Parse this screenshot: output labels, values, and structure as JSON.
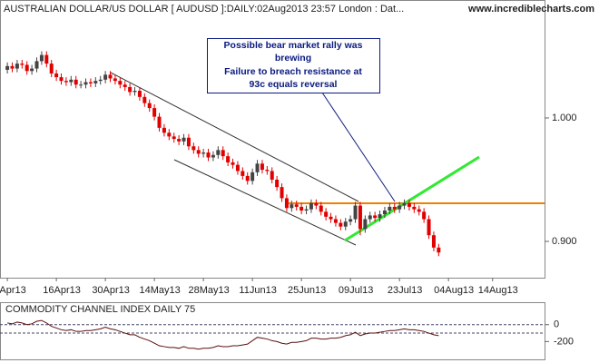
{
  "chart_data": [
    {
      "type": "candlestick",
      "title": "AUSTRALIAN DOLLAR/US DOLLAR [ AUDUSD ]:DAILY:02Aug2013 23:57 London : Dat...",
      "source": "www.incrediblecharts.com",
      "annotation": [
        "Possible bear market rally was",
        "brewing",
        "Failure to breach resistance at",
        "93c equals reversal"
      ],
      "up_color": "#444444",
      "down_color": "#e00000",
      "x": [
        0,
        1,
        2,
        3,
        4,
        5,
        6,
        7,
        8,
        9,
        10,
        11,
        12,
        13,
        14,
        15,
        16,
        17,
        18,
        19,
        20,
        21,
        22,
        23,
        24,
        25,
        26,
        27,
        28,
        29,
        30,
        31,
        32,
        33,
        34,
        35,
        36,
        37,
        38,
        39,
        40,
        41,
        42,
        43,
        44,
        45,
        46,
        47,
        48,
        49,
        50,
        51,
        52,
        53,
        54,
        55,
        56,
        57,
        58,
        59,
        60,
        61,
        62,
        63,
        64,
        65,
        66,
        67,
        68,
        69,
        70,
        71,
        72,
        73,
        74,
        75,
        76,
        77,
        78,
        79,
        80,
        81,
        82,
        83,
        84,
        85,
        86,
        87,
        88
      ],
      "open": [
        1.039,
        1.042,
        1.04,
        1.044,
        1.043,
        1.038,
        1.04,
        1.046,
        1.051,
        1.044,
        1.036,
        1.033,
        1.03,
        1.029,
        1.031,
        1.027,
        1.027,
        1.029,
        1.028,
        1.03,
        1.031,
        1.035,
        1.032,
        1.03,
        1.027,
        1.025,
        1.021,
        1.022,
        1.017,
        1.012,
        1.008,
        1.001,
        0.992,
        0.988,
        0.985,
        0.983,
        0.981,
        0.984,
        0.977,
        0.974,
        0.971,
        0.972,
        0.968,
        0.97,
        0.974,
        0.969,
        0.964,
        0.962,
        0.957,
        0.953,
        0.949,
        0.956,
        0.963,
        0.958,
        0.957,
        0.95,
        0.944,
        0.935,
        0.927,
        0.93,
        0.928,
        0.925,
        0.926,
        0.931,
        0.929,
        0.924,
        0.92,
        0.918,
        0.915,
        0.912,
        0.916,
        0.918,
        0.929,
        0.91,
        0.918,
        0.921,
        0.919,
        0.922,
        0.925,
        0.928,
        0.926,
        0.929,
        0.931,
        0.928,
        0.926,
        0.924,
        0.918,
        0.905,
        0.895
      ],
      "high": [
        1.045,
        1.045,
        1.047,
        1.047,
        1.046,
        1.043,
        1.049,
        1.054,
        1.054,
        1.047,
        1.039,
        1.036,
        1.033,
        1.034,
        1.034,
        1.03,
        1.032,
        1.032,
        1.033,
        1.034,
        1.038,
        1.038,
        1.035,
        1.033,
        1.03,
        1.028,
        1.025,
        1.025,
        1.02,
        1.015,
        1.011,
        1.004,
        0.995,
        0.991,
        0.988,
        0.986,
        0.987,
        0.987,
        0.98,
        0.977,
        0.975,
        0.975,
        0.973,
        0.977,
        0.977,
        0.972,
        0.967,
        0.965,
        0.96,
        0.956,
        0.959,
        0.966,
        0.966,
        0.961,
        0.96,
        0.953,
        0.947,
        0.938,
        0.933,
        0.933,
        0.931,
        0.929,
        0.934,
        0.934,
        0.932,
        0.927,
        0.923,
        0.921,
        0.918,
        0.919,
        0.921,
        0.932,
        0.932,
        0.921,
        0.924,
        0.924,
        0.925,
        0.928,
        0.931,
        0.931,
        0.932,
        0.934,
        0.934,
        0.931,
        0.929,
        0.927,
        0.921,
        0.908,
        0.898
      ],
      "low": [
        1.036,
        1.037,
        1.037,
        1.04,
        1.035,
        1.035,
        1.037,
        1.043,
        1.041,
        1.033,
        1.03,
        1.027,
        1.026,
        1.026,
        1.024,
        1.024,
        1.024,
        1.025,
        1.025,
        1.027,
        1.028,
        1.029,
        1.027,
        1.024,
        1.022,
        1.018,
        1.018,
        1.014,
        1.009,
        1.005,
        0.998,
        0.989,
        0.985,
        0.982,
        0.98,
        0.978,
        0.978,
        0.974,
        0.971,
        0.968,
        0.968,
        0.965,
        0.965,
        0.967,
        0.966,
        0.961,
        0.959,
        0.954,
        0.95,
        0.946,
        0.946,
        0.953,
        0.955,
        0.954,
        0.947,
        0.941,
        0.932,
        0.924,
        0.924,
        0.925,
        0.922,
        0.922,
        0.923,
        0.926,
        0.921,
        0.917,
        0.915,
        0.912,
        0.909,
        0.909,
        0.913,
        0.915,
        0.905,
        0.907,
        0.915,
        0.916,
        0.916,
        0.919,
        0.922,
        0.923,
        0.923,
        0.926,
        0.925,
        0.923,
        0.921,
        0.915,
        0.902,
        0.892,
        0.888
      ],
      "close": [
        1.042,
        1.04,
        1.044,
        1.043,
        1.038,
        1.04,
        1.046,
        1.051,
        1.044,
        1.036,
        1.033,
        1.03,
        1.029,
        1.031,
        1.027,
        1.027,
        1.029,
        1.028,
        1.03,
        1.031,
        1.035,
        1.032,
        1.03,
        1.027,
        1.025,
        1.021,
        1.022,
        1.017,
        1.012,
        1.008,
        1.001,
        0.992,
        0.988,
        0.985,
        0.983,
        0.981,
        0.984,
        0.977,
        0.974,
        0.971,
        0.972,
        0.968,
        0.97,
        0.974,
        0.969,
        0.964,
        0.962,
        0.957,
        0.953,
        0.949,
        0.956,
        0.963,
        0.958,
        0.957,
        0.95,
        0.944,
        0.935,
        0.927,
        0.93,
        0.928,
        0.925,
        0.926,
        0.931,
        0.929,
        0.924,
        0.92,
        0.918,
        0.915,
        0.912,
        0.916,
        0.918,
        0.929,
        0.91,
        0.918,
        0.921,
        0.919,
        0.922,
        0.925,
        0.928,
        0.926,
        0.929,
        0.931,
        0.928,
        0.926,
        0.924,
        0.918,
        0.905,
        0.895,
        0.891
      ],
      "xlim": [
        -1.5,
        109.6
      ],
      "ylim": [
        0.8706,
        1.0948
      ],
      "yticks": [
        {
          "value": 1.0,
          "label": "1.000"
        },
        {
          "value": 0.9,
          "label": "0.900"
        }
      ],
      "xticks": [
        {
          "value": 0,
          "label": "Apr13"
        },
        {
          "value": 10,
          "label": "16Apr13"
        },
        {
          "value": 20,
          "label": "30Apr13"
        },
        {
          "value": 30,
          "label": "14May13"
        },
        {
          "value": 40,
          "label": "28May13"
        },
        {
          "value": 50,
          "label": "11Jun13"
        },
        {
          "value": 60,
          "label": "25Jun13"
        },
        {
          "value": 70,
          "label": "09Jul13"
        },
        {
          "value": 80,
          "label": "23Jul13"
        },
        {
          "value": 90,
          "label": "04Aug13"
        },
        {
          "value": 99,
          "label": "14Aug13"
        }
      ]
    },
    {
      "type": "line",
      "title": "COMMODITY CHANNEL INDEX DAILY 75",
      "color": "#5a1010",
      "values": [
        20,
        10,
        30,
        20,
        0,
        10,
        40,
        50,
        20,
        -20,
        -40,
        -60,
        -70,
        -60,
        -80,
        -80,
        -70,
        -70,
        -60,
        -50,
        -30,
        -50,
        -60,
        -80,
        -100,
        -120,
        -120,
        -150,
        -170,
        -190,
        -220,
        -250,
        -260,
        -270,
        -270,
        -280,
        -260,
        -280,
        -280,
        -290,
        -280,
        -280,
        -270,
        -250,
        -260,
        -260,
        -250,
        -250,
        -240,
        -230,
        -190,
        -150,
        -160,
        -170,
        -190,
        -200,
        -220,
        -230,
        -210,
        -210,
        -200,
        -190,
        -160,
        -160,
        -170,
        -170,
        -160,
        -160,
        -150,
        -130,
        -120,
        -90,
        -130,
        -110,
        -100,
        -100,
        -90,
        -80,
        -70,
        -70,
        -60,
        -50,
        -60,
        -60,
        -70,
        -80,
        -100,
        -120,
        -130
      ],
      "ylim": [
        -411,
        255
      ],
      "yticks": [
        0,
        -200
      ],
      "guides": [
        0,
        -100
      ]
    }
  ]
}
